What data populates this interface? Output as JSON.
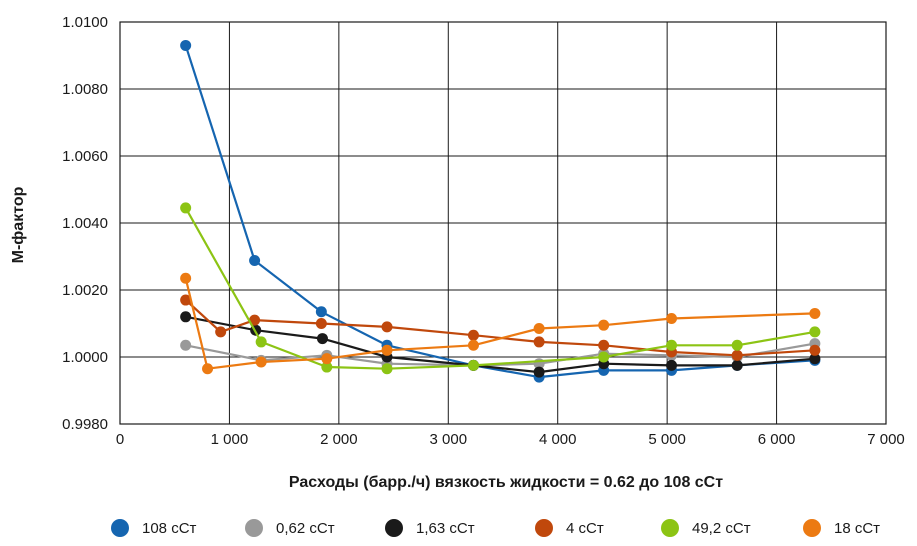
{
  "chart_data": {
    "type": "line",
    "xlabel": "Расходы (барр./ч) вязкость жидкости = 0.62 до 108 сСт",
    "ylabel": "М-фактор",
    "xlim": [
      0,
      7000
    ],
    "ylim": [
      0.998,
      1.01
    ],
    "x_ticks": [
      0,
      1000,
      2000,
      3000,
      4000,
      5000,
      6000,
      7000
    ],
    "x_tick_labels": [
      "0",
      "1 000",
      "2 000",
      "3 000",
      "4 000",
      "5 000",
      "6 000",
      "7 000"
    ],
    "y_ticks": [
      0.998,
      1.0,
      1.002,
      1.004,
      1.006,
      1.008,
      1.01
    ],
    "y_tick_labels": [
      "0.9980",
      "1.0000",
      "1.0020",
      "1.0040",
      "1.0060",
      "1.0080",
      "1.0100"
    ],
    "grid": true,
    "legend_position": "bottom",
    "series": [
      {
        "name": "108 сСт",
        "color": "#1565b0",
        "x": [
          600,
          1230,
          1840,
          2440,
          3230,
          3830,
          4420,
          5040,
          5640,
          6350
        ],
        "y": [
          1.0093,
          1.00288,
          1.00135,
          1.00035,
          0.99975,
          0.9994,
          0.9996,
          0.9996,
          0.99975,
          0.9999
        ]
      },
      {
        "name": "0,62 сСт",
        "color": "#999999",
        "x": [
          600,
          1290,
          1890,
          2440,
          3230,
          3830,
          4420,
          5040,
          5640,
          6350
        ],
        "y": [
          1.00035,
          0.9999,
          1.00005,
          0.9998,
          0.99975,
          0.9998,
          1.0001,
          1.00005,
          1.0,
          1.0004
        ]
      },
      {
        "name": "1,63 сСт",
        "color": "#1a1a1a",
        "x": [
          600,
          1240,
          1850,
          2440,
          3230,
          3830,
          4420,
          5040,
          5640,
          6350
        ],
        "y": [
          1.0012,
          1.0008,
          1.00055,
          1.0,
          0.99975,
          0.99955,
          0.9998,
          0.99975,
          0.99975,
          0.99995
        ]
      },
      {
        "name": "4 сСт",
        "color": "#c0480c",
        "x": [
          600,
          920,
          1230,
          1840,
          2440,
          3230,
          3830,
          4420,
          5040,
          5640,
          6350
        ],
        "y": [
          1.0017,
          1.00075,
          1.0011,
          1.001,
          1.0009,
          1.00065,
          1.00045,
          1.00035,
          1.00015,
          1.00005,
          1.0002
        ]
      },
      {
        "name": "49,2 сСт",
        "color": "#8cc414",
        "x": [
          600,
          1290,
          1890,
          2440,
          3230,
          4420,
          5040,
          5640,
          6350
        ],
        "y": [
          1.00445,
          1.00045,
          0.9997,
          0.99965,
          0.99975,
          1.0,
          1.00035,
          1.00035,
          1.00075
        ]
      },
      {
        "name": "18 сСт",
        "color": "#ec7a12",
        "x": [
          600,
          800,
          1290,
          1890,
          2440,
          3230,
          3830,
          4420,
          5040,
          6350
        ],
        "y": [
          1.00235,
          0.99965,
          0.99985,
          0.99995,
          1.0002,
          1.00035,
          1.00085,
          1.00095,
          1.00115,
          1.0013
        ]
      }
    ]
  }
}
